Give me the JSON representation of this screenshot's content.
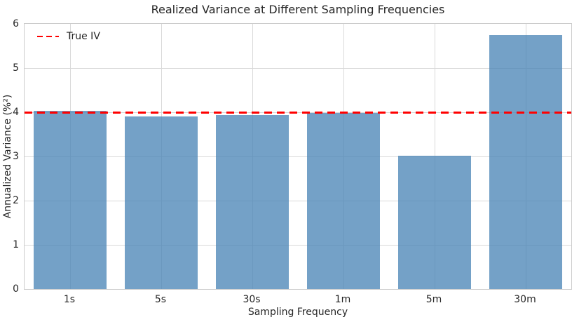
{
  "chart_data": {
    "type": "bar",
    "title": "Realized Variance at Different Sampling Frequencies",
    "xlabel": "Sampling Frequency",
    "ylabel": "Annualized Variance (%²)",
    "categories": [
      "1s",
      "5s",
      "30s",
      "1m",
      "5m",
      "30m"
    ],
    "values": [
      4.03,
      3.9,
      3.93,
      3.99,
      3.02,
      5.74
    ],
    "ylim": [
      0,
      6
    ],
    "yticks": [
      0,
      1,
      2,
      3,
      4,
      5,
      6
    ],
    "grid": true,
    "bar_color": "#4682B4",
    "bar_alpha": 0.75,
    "reference_line": {
      "label": "True IV",
      "value": 4.0,
      "color": "#FF0000",
      "style": "dashed"
    },
    "legend": {
      "position": "upper left",
      "entries": [
        {
          "label": "True IV",
          "color": "#FF0000",
          "marker": "dashed-line"
        }
      ]
    }
  }
}
